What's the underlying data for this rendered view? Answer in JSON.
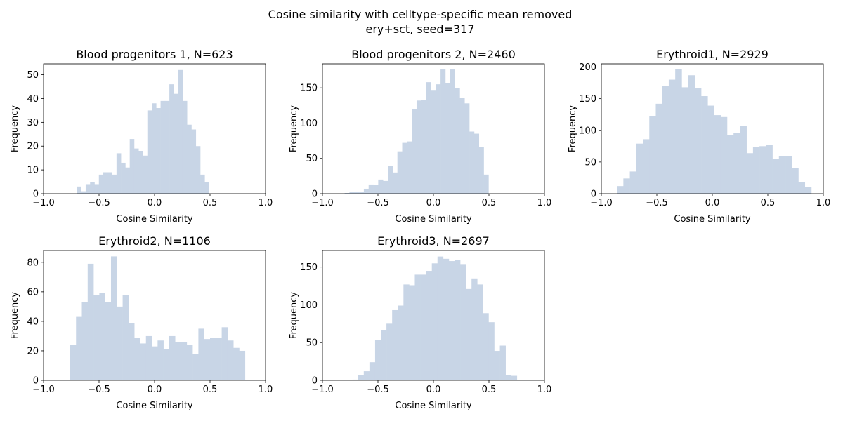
{
  "figure": {
    "suptitle_line1": "Cosine similarity with celltype-specific mean removed",
    "suptitle_line2": "ery+sct, seed=317",
    "bar_color": "#c8d5e6"
  },
  "chart_data": [
    {
      "type": "bar",
      "title": "Blood progenitors 1, N=623",
      "xlabel": "Cosine Similarity",
      "ylabel": "Frequency",
      "xlim": [
        -1.0,
        1.0
      ],
      "ylim": [
        0,
        54.6
      ],
      "xticks": [
        -1.0,
        -0.5,
        0.0,
        0.5,
        1.0
      ],
      "xtick_labels": [
        "−1.0",
        "−0.5",
        "0.0",
        "0.5",
        "1.0"
      ],
      "yticks": [
        0,
        10,
        20,
        30,
        40,
        50
      ],
      "bin_start": -0.7,
      "bin_width": 0.0397,
      "values": [
        3,
        1,
        4,
        5,
        4,
        8,
        9,
        9,
        8,
        17,
        13,
        11,
        23,
        19,
        18,
        16,
        35,
        38,
        36,
        39,
        39,
        46,
        42,
        52,
        39,
        29,
        27,
        20,
        8,
        5
      ]
    },
    {
      "type": "bar",
      "title": "Blood progenitors 2, N=2460",
      "xlabel": "Cosine Similarity",
      "ylabel": "Frequency",
      "xlim": [
        -1.0,
        1.0
      ],
      "ylim": [
        0,
        184
      ],
      "xticks": [
        -1.0,
        -0.5,
        0.0,
        0.5,
        1.0
      ],
      "xtick_labels": [
        "−1.0",
        "−0.5",
        "0.0",
        "0.5",
        "1.0"
      ],
      "yticks": [
        0,
        50,
        100,
        150
      ],
      "bin_start": -0.8,
      "bin_width": 0.0432,
      "values": [
        1,
        2,
        3,
        3,
        7,
        13,
        12,
        20,
        18,
        39,
        30,
        60,
        72,
        74,
        120,
        132,
        133,
        158,
        147,
        155,
        176,
        157,
        176,
        150,
        136,
        128,
        88,
        85,
        66,
        27
      ]
    },
    {
      "type": "bar",
      "title": "Erythroid1, N=2929",
      "xlabel": "Cosine Similarity",
      "ylabel": "Frequency",
      "xlim": [
        -1.0,
        1.0
      ],
      "ylim": [
        0,
        205
      ],
      "xticks": [
        -1.0,
        -0.5,
        0.0,
        0.5,
        1.0
      ],
      "xtick_labels": [
        "−1.0",
        "−0.5",
        "0.0",
        "0.5",
        "1.0"
      ],
      "yticks": [
        0,
        50,
        100,
        150,
        200
      ],
      "bin_start": -0.86,
      "bin_width": 0.0584,
      "values": [
        12,
        24,
        35,
        79,
        86,
        122,
        142,
        170,
        180,
        197,
        168,
        187,
        167,
        154,
        139,
        124,
        121,
        92,
        96,
        107,
        64,
        74,
        75,
        77,
        55,
        59,
        59,
        41,
        18,
        11
      ]
    },
    {
      "type": "bar",
      "title": "Erythroid2, N=1106",
      "xlabel": "Cosine Similarity",
      "ylabel": "Frequency",
      "xlim": [
        -1.0,
        1.0
      ],
      "ylim": [
        0,
        88
      ],
      "xticks": [
        -1.0,
        -0.5,
        0.0,
        0.5,
        1.0
      ],
      "xtick_labels": [
        "−1.0",
        "−0.5",
        "0.0",
        "0.5",
        "1.0"
      ],
      "yticks": [
        0,
        20,
        40,
        60,
        80
      ],
      "bin_start": -0.76,
      "bin_width": 0.0525,
      "values": [
        24,
        43,
        53,
        79,
        58,
        59,
        53,
        84,
        50,
        58,
        39,
        29,
        25,
        30,
        23,
        27,
        21,
        30,
        26,
        26,
        24,
        18,
        35,
        28,
        29,
        29,
        36,
        27,
        22,
        20
      ]
    },
    {
      "type": "bar",
      "title": "Erythroid3, N=2697",
      "xlabel": "Cosine Similarity",
      "ylabel": "Frequency",
      "xlim": [
        -1.0,
        1.0
      ],
      "ylim": [
        0,
        172
      ],
      "xticks": [
        -1.0,
        -0.5,
        0.0,
        0.5,
        1.0
      ],
      "xtick_labels": [
        "−1.0",
        "−0.5",
        "0.0",
        "0.5",
        "1.0"
      ],
      "yticks": [
        0,
        50,
        100,
        150
      ],
      "bin_start": -0.73,
      "bin_width": 0.0511,
      "values": [
        1,
        7,
        12,
        24,
        53,
        66,
        75,
        93,
        99,
        127,
        126,
        140,
        140,
        145,
        155,
        164,
        161,
        158,
        159,
        154,
        121,
        135,
        127,
        89,
        77,
        39,
        46,
        7,
        6,
        0
      ]
    }
  ]
}
